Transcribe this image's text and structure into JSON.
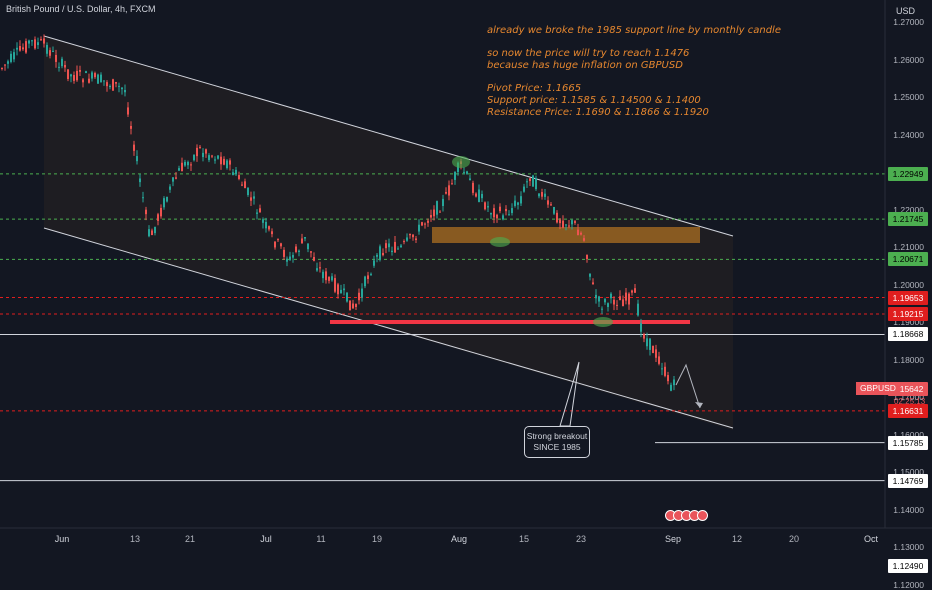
{
  "header": {
    "title": "British Pound / U.S. Dollar, 4h, FXCM",
    "currency": "USD"
  },
  "notes": {
    "line1": "already we broke the 1985 support line by monthly candle",
    "line2": "so now the price will try to reach 1.1476",
    "line3": "because has huge inflation on GBPUSD",
    "line4": "Pivot Price: 1.1665",
    "line5": "Support price: 1.1585 & 1.14500 & 1.1400",
    "line6": "Resistance Price: 1.1690 & 1.1866  & 1.1920"
  },
  "callout": {
    "line1": "Strong breakout",
    "line2": "SINCE 1985"
  },
  "axis": {
    "ticks": [
      "1.27000",
      "1.26000",
      "1.25000",
      "1.24000",
      "1.23000",
      "1.22000",
      "1.21000",
      "1.20000",
      "1.19000",
      "1.18000",
      "1.17000",
      "1.16000",
      "1.15000",
      "1.14000",
      "1.13000",
      "1.12000"
    ],
    "tick_values": [
      1.27,
      1.26,
      1.25,
      1.24,
      1.23,
      1.22,
      1.21,
      1.2,
      1.19,
      1.18,
      1.17,
      1.16,
      1.15,
      1.14,
      1.13,
      1.12
    ]
  },
  "levels": [
    {
      "label": "1.22949",
      "value": 1.22949,
      "style": "green"
    },
    {
      "label": "1.21745",
      "value": 1.21745,
      "style": "green"
    },
    {
      "label": "1.20671",
      "value": 1.20671,
      "style": "green"
    },
    {
      "label": "1.19653",
      "value": 1.19653,
      "style": "red"
    },
    {
      "label": "1.19215",
      "value": 1.19215,
      "style": "red"
    },
    {
      "label": "1.18668",
      "value": 1.18668,
      "style": "white"
    },
    {
      "label": "1.16631",
      "value": 1.16631,
      "style": "red"
    },
    {
      "label": "1.15785",
      "value": 1.15785,
      "style": "white"
    },
    {
      "label": "1.14769",
      "value": 1.14769,
      "style": "white"
    },
    {
      "label": "1.12490",
      "value": 1.1249,
      "style": "white"
    }
  ],
  "symbol": {
    "name": "GBPUSD",
    "price": "1.15642",
    "countdown": "02:25:13"
  },
  "dates": [
    "Jun",
    "13",
    "21",
    "Jul",
    "11",
    "19",
    "Aug",
    "15",
    "23",
    "Sep",
    "12",
    "20",
    "Oct"
  ],
  "colors": {
    "up": "#26a69a",
    "down": "#ef5350",
    "support": "#f23645",
    "channel": "#ffffff",
    "note": "#e6872f"
  }
}
